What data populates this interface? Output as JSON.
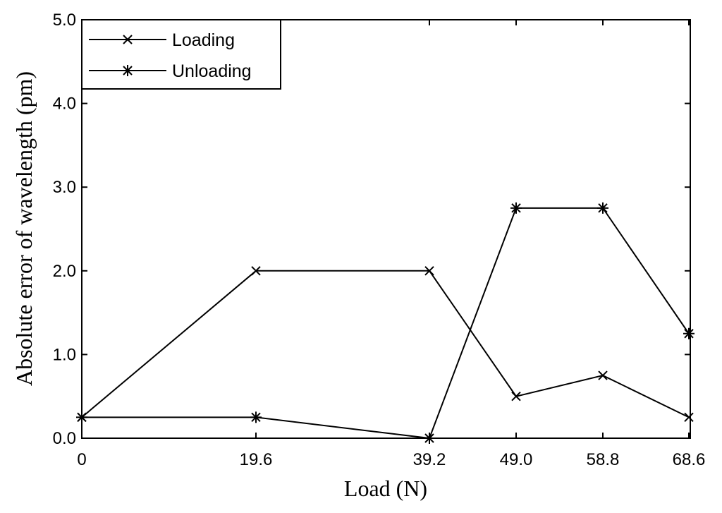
{
  "chart_data": {
    "type": "line",
    "xlabel": "Load (N)",
    "ylabel": "Absolute error of wavelength (pm)",
    "x_ticks": [
      "0",
      "19.6",
      "39.2",
      "49.0",
      "58.8",
      "68.6"
    ],
    "y_ticks": [
      "0.0",
      "1.0",
      "2.0",
      "3.0",
      "4.0",
      "5.0"
    ],
    "ylim": [
      0,
      5
    ],
    "grid": false,
    "legend_position": "top-left",
    "series": [
      {
        "name": "Loading",
        "marker": "x",
        "values": [
          0.25,
          2.0,
          2.0,
          0.5,
          0.75,
          0.25
        ]
      },
      {
        "name": "Unloading",
        "marker": "asterisk",
        "values": [
          0.25,
          0.25,
          0.0,
          2.75,
          2.75,
          1.25
        ]
      }
    ]
  }
}
